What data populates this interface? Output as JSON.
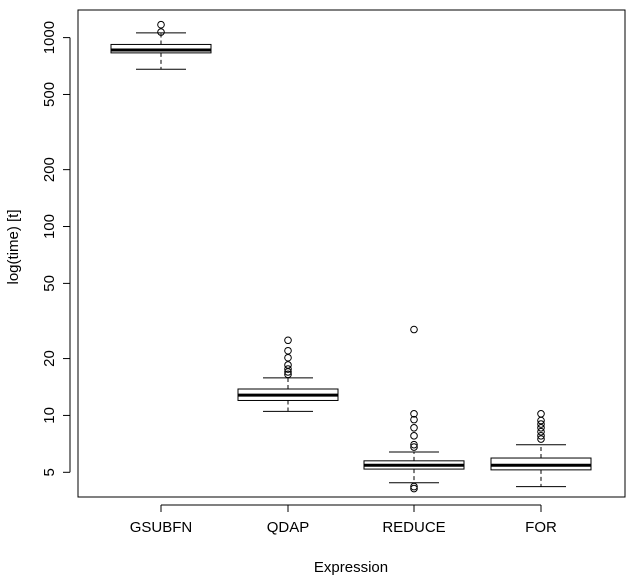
{
  "chart_data": {
    "type": "boxplot",
    "title": "",
    "xlabel": "Expression",
    "ylabel": "log(time) [t]",
    "yscale": "log",
    "ylim": [
      3.7,
      1400
    ],
    "yticks": [
      5,
      10,
      20,
      50,
      100,
      200,
      500,
      1000
    ],
    "ytick_labels": [
      "5",
      "10",
      "20",
      "50",
      "100",
      "200",
      "500",
      "1000"
    ],
    "categories": [
      "GSUBFN",
      "QDAP",
      "REDUCE",
      "FOR"
    ],
    "boxes": [
      {
        "name": "GSUBFN",
        "whisker_low": 680,
        "q1": 830,
        "median": 860,
        "q3": 920,
        "whisker_high": 1060,
        "outliers": [
          1070,
          1170
        ]
      },
      {
        "name": "QDAP",
        "whisker_low": 10.5,
        "q1": 12.0,
        "median": 12.8,
        "q3": 13.8,
        "whisker_high": 15.8,
        "outliers": [
          16.5,
          17.0,
          17.6,
          18.5,
          20.2,
          22.0,
          25.0
        ]
      },
      {
        "name": "REDUCE",
        "whisker_low": 4.4,
        "q1": 5.2,
        "median": 5.45,
        "q3": 5.75,
        "whisker_high": 6.4,
        "outliers": [
          4.1,
          4.2,
          6.8,
          7.0,
          7.8,
          8.6,
          9.5,
          10.2,
          28.5
        ]
      },
      {
        "name": "FOR",
        "whisker_low": 4.2,
        "q1": 5.15,
        "median": 5.45,
        "q3": 5.95,
        "whisker_high": 7.0,
        "outliers": [
          7.5,
          7.8,
          8.2,
          8.6,
          9.0,
          9.4,
          10.2
        ]
      }
    ],
    "colors": {
      "box_fill": "#ffffff",
      "stroke": "#000000"
    }
  }
}
